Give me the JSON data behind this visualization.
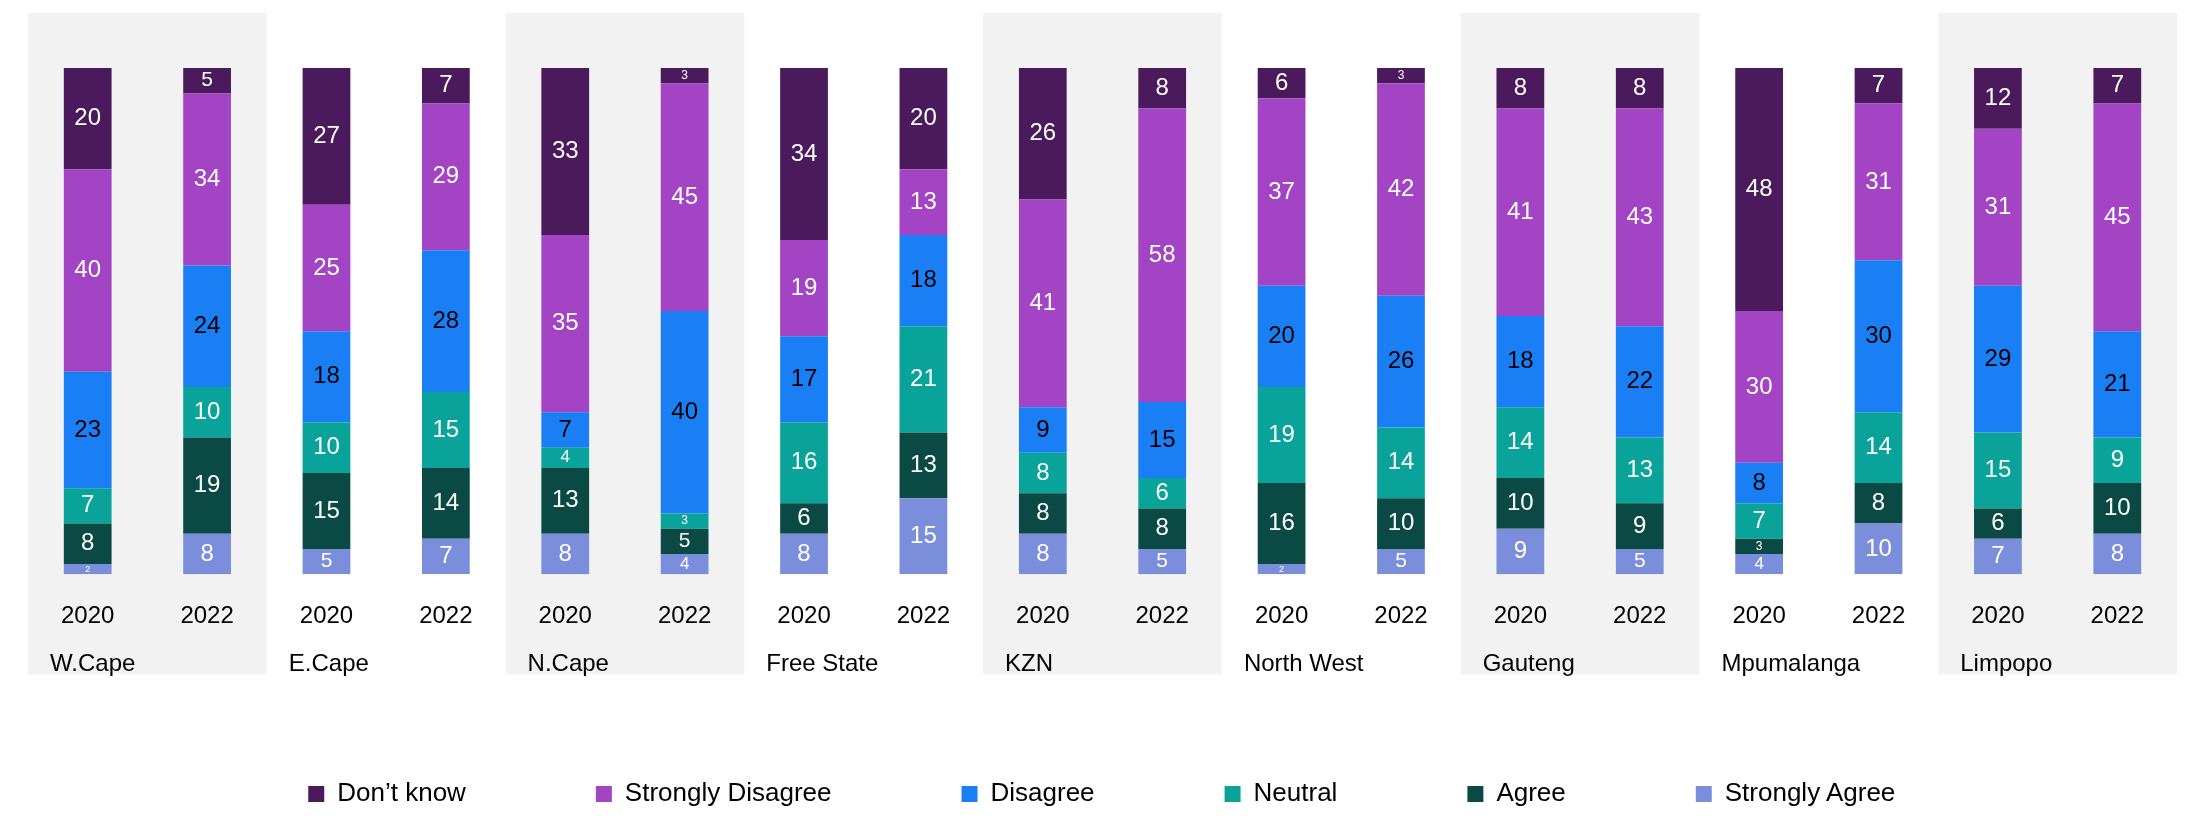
{
  "chart_data": {
    "type": "bar",
    "stacked": true,
    "data_labels": true,
    "legend": "bottom",
    "grid": false,
    "categories": [
      "2020",
      "2022",
      "2020",
      "2022",
      "2020",
      "2022",
      "2020",
      "2022",
      "2020",
      "2022",
      "2020",
      "2022",
      "2020",
      "2022",
      "2020",
      "2022",
      "2020",
      "2022"
    ],
    "annotations": [
      "W.Cape",
      "E.Cape",
      "N.Cape",
      "Free State",
      "KZN",
      "North West",
      "Gauteng",
      "Mpumalanga",
      "Limpopo"
    ],
    "series": [
      {
        "name": "Strongly Agree",
        "color": "#7b8edb",
        "values": [
          2,
          8,
          5,
          7,
          8,
          4,
          8,
          15,
          8,
          5,
          2,
          5,
          9,
          5,
          4,
          10,
          7,
          8
        ]
      },
      {
        "name": "Agree",
        "color": "#0b4a44",
        "values": [
          8,
          19,
          15,
          14,
          13,
          5,
          6,
          13,
          8,
          8,
          16,
          10,
          10,
          9,
          3,
          8,
          6,
          10
        ]
      },
      {
        "name": "Neutral",
        "color": "#0aa39a",
        "values": [
          7,
          10,
          10,
          15,
          4,
          3,
          16,
          21,
          8,
          6,
          19,
          14,
          14,
          13,
          7,
          14,
          15,
          9
        ]
      },
      {
        "name": "Disagree",
        "color": "#1a7ef5",
        "values": [
          23,
          24,
          18,
          28,
          7,
          40,
          17,
          18,
          9,
          15,
          20,
          26,
          18,
          22,
          8,
          30,
          29,
          21
        ]
      },
      {
        "name": "Strongly Disagree",
        "color": "#a244c4",
        "values": [
          40,
          34,
          25,
          29,
          35,
          45,
          19,
          13,
          41,
          58,
          37,
          42,
          41,
          43,
          30,
          31,
          31,
          45
        ]
      },
      {
        "name": "Don’t know",
        "color": "#4b1a5c",
        "values": [
          20,
          5,
          27,
          7,
          33,
          3,
          34,
          20,
          26,
          8,
          6,
          3,
          8,
          8,
          48,
          7,
          12,
          7
        ]
      }
    ]
  }
}
